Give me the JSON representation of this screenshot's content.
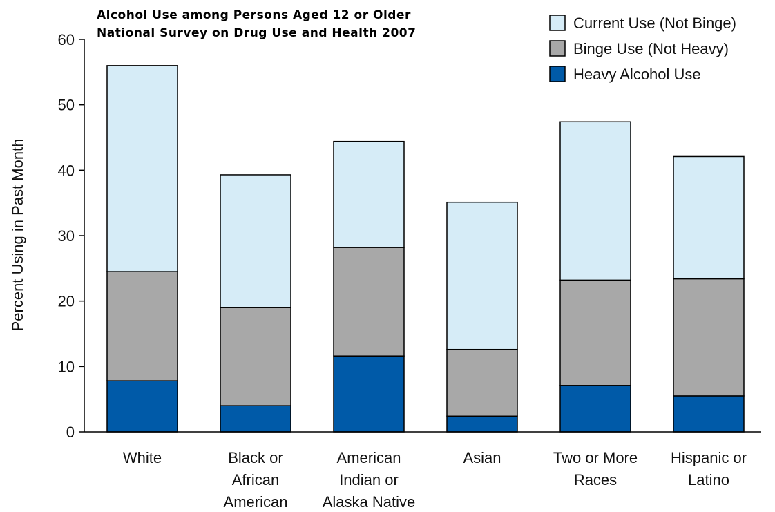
{
  "chart_data": {
    "type": "bar",
    "stacked": true,
    "title_lines": [
      "Alcohol Use among Persons Aged 12 or Older",
      "National Survey on Drug Use and Health 2007"
    ],
    "xlabel": "",
    "ylabel": "Percent Using in Past Month",
    "ylim": [
      0,
      60
    ],
    "yticks": [
      0,
      10,
      20,
      30,
      40,
      50,
      60
    ],
    "grid": false,
    "legend_position": "top-right",
    "categories": [
      [
        "White"
      ],
      [
        "Black or",
        "African",
        "American"
      ],
      [
        "American",
        "Indian or",
        "Alaska Native"
      ],
      [
        "Asian"
      ],
      [
        "Two or More",
        "Races"
      ],
      [
        "Hispanic or",
        "Latino"
      ]
    ],
    "series": [
      {
        "name": "Heavy Alcohol Use",
        "color": "#005aa8",
        "values": [
          7.8,
          4.0,
          11.6,
          2.4,
          7.1,
          5.5
        ]
      },
      {
        "name": "Binge Use (Not Heavy)",
        "color": "#a8a8a8",
        "values": [
          16.7,
          15.0,
          16.6,
          10.2,
          16.1,
          17.9
        ]
      },
      {
        "name": "Current Use (Not Binge)",
        "color": "#d6ecf7",
        "values": [
          31.5,
          20.3,
          16.2,
          22.5,
          24.2,
          18.7
        ]
      }
    ],
    "legend_order": [
      2,
      1,
      0
    ]
  }
}
